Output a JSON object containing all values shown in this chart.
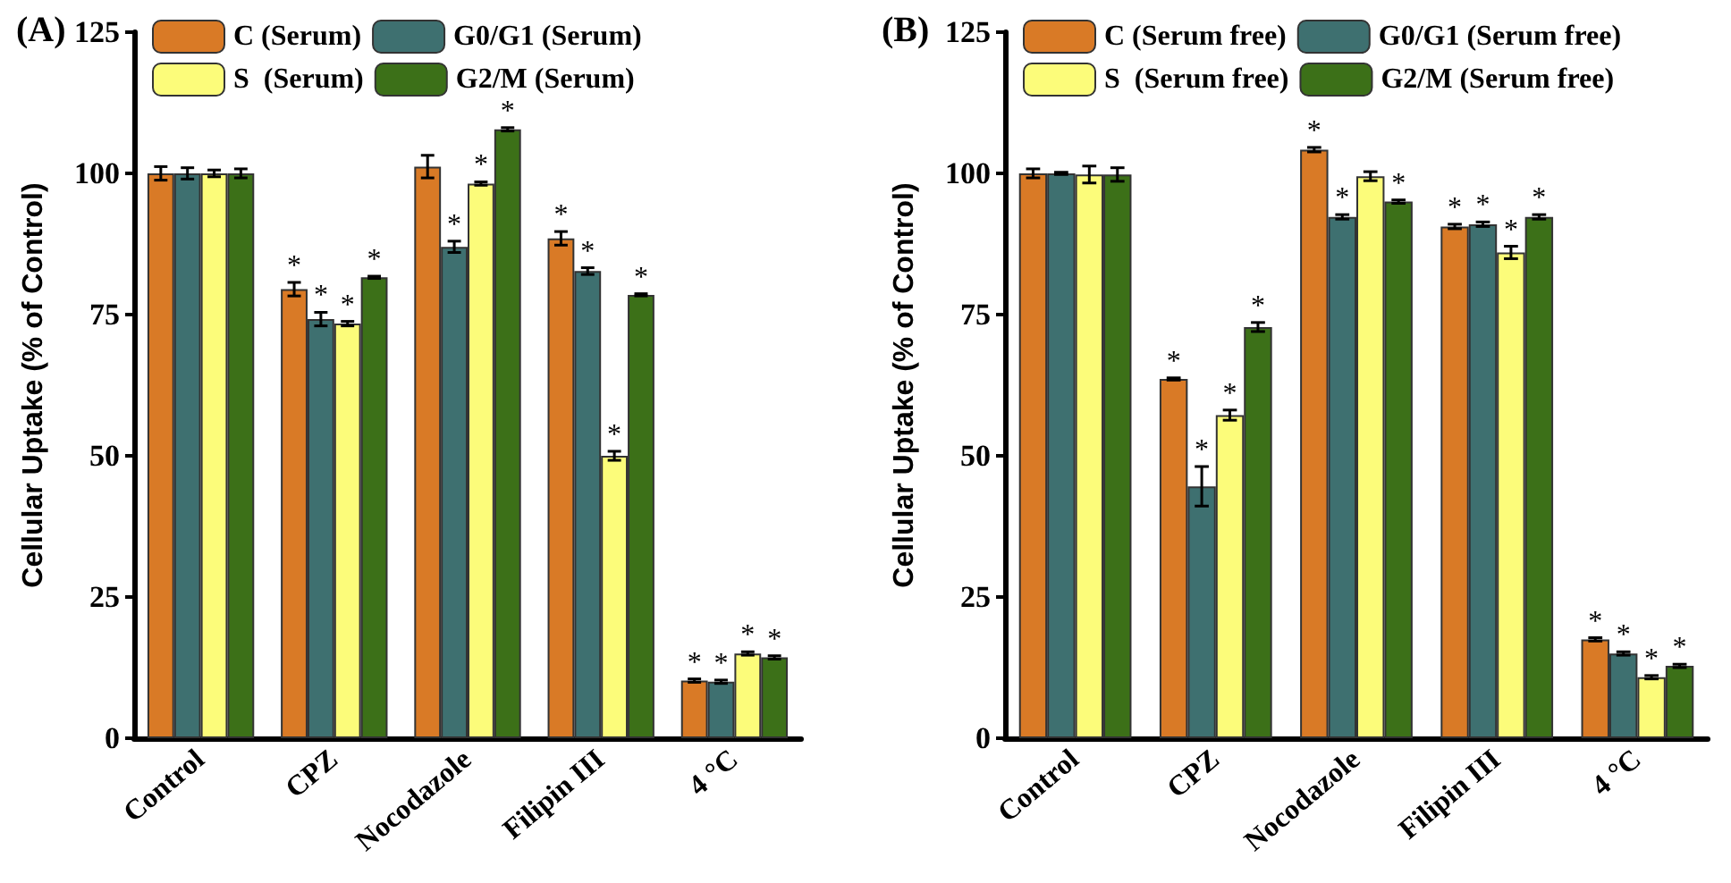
{
  "chart_data": [
    {
      "type": "bar",
      "title": "(A)",
      "ylabel": "Cellular Uptake (% of Control)",
      "categories": [
        "Control",
        "CPZ",
        "Nocodazole",
        "Filipin III",
        "4 °C"
      ],
      "ylim": [
        0,
        125
      ],
      "yticks": [
        0,
        25,
        50,
        75,
        100,
        125
      ],
      "grid": false,
      "legend": "top",
      "series": [
        {
          "name": "C (Serum)",
          "color": "#d97a26",
          "values": [
            100,
            79.5,
            101.2,
            88.5,
            10.2
          ],
          "errors": [
            1.2,
            1.2,
            2,
            1.2,
            0.3
          ],
          "value_labels": [
            null,
            "*",
            null,
            "*",
            "*"
          ]
        },
        {
          "name": "G0/G1 (Serum)",
          "color": "#3e7070",
          "values": [
            100,
            74.2,
            87,
            82.7,
            10
          ],
          "errors": [
            1,
            1.2,
            1,
            0.6,
            0.3
          ],
          "value_labels": [
            null,
            "*",
            "*",
            "*",
            "*"
          ]
        },
        {
          "name": "S  (Serum)",
          "color": "#fcfc7a",
          "values": [
            100,
            73.4,
            98.2,
            50,
            15
          ],
          "errors": [
            0.6,
            0.4,
            0.3,
            0.8,
            0.3
          ],
          "value_labels": [
            null,
            "*",
            "*",
            "*",
            "*"
          ]
        },
        {
          "name": "G2/M (Serum)",
          "color": "#3c7018",
          "values": [
            100,
            81.6,
            107.8,
            78.5,
            14.3
          ],
          "errors": [
            0.8,
            0.2,
            0.3,
            0.2,
            0.3
          ],
          "value_labels": [
            null,
            "*",
            "*",
            "*",
            "*"
          ]
        }
      ]
    },
    {
      "type": "bar",
      "title": "(B)",
      "ylabel": "Cellular Uptake (% of Control)",
      "categories": [
        "Control",
        "CPZ",
        "Nocodazole",
        "Filipin III",
        "4 °C"
      ],
      "ylim": [
        0,
        125
      ],
      "yticks": [
        0,
        25,
        50,
        75,
        100,
        125
      ],
      "grid": false,
      "legend": "top",
      "series": [
        {
          "name": "C (Serum free)",
          "color": "#d97a26",
          "values": [
            100,
            63.6,
            104.2,
            90.6,
            17.5
          ],
          "errors": [
            0.8,
            0.2,
            0.4,
            0.4,
            0.3
          ],
          "value_labels": [
            null,
            "*",
            "*",
            "*",
            "*"
          ]
        },
        {
          "name": "G0/G1 (Serum free)",
          "color": "#3e7070",
          "values": [
            100,
            44.6,
            92.3,
            91,
            15
          ],
          "errors": [
            0.2,
            3.5,
            0.4,
            0.4,
            0.3
          ],
          "value_labels": [
            null,
            "*",
            "*",
            "*",
            "*"
          ]
        },
        {
          "name": "S  (Serum free)",
          "color": "#fcfc7a",
          "values": [
            99.8,
            57.2,
            99.5,
            86,
            10.8
          ],
          "errors": [
            1.5,
            0.9,
            0.8,
            1.1,
            0.3
          ],
          "value_labels": [
            null,
            "*",
            null,
            "*",
            "*"
          ]
        },
        {
          "name": "G2/M (Serum free)",
          "color": "#3c7018",
          "values": [
            99.8,
            72.8,
            95,
            92.3,
            12.8
          ],
          "errors": [
            1.2,
            0.8,
            0.3,
            0.4,
            0.3
          ],
          "value_labels": [
            null,
            "*",
            "*",
            "*",
            "*"
          ]
        }
      ]
    }
  ]
}
